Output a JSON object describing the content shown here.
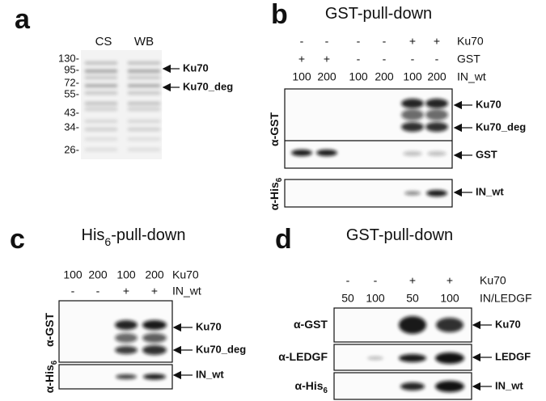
{
  "panels": [
    {
      "letter": "a",
      "lanes": [
        "CS",
        "WB"
      ],
      "markers": [
        "130-",
        "95-",
        "72-",
        "55-",
        "43-",
        "34-",
        "26-"
      ],
      "arrows": [
        "Ku70",
        "Ku70_deg"
      ]
    },
    {
      "letter": "b",
      "title": {
        "text": "GST-pull-down"
      },
      "rows": [
        {
          "label": "Ku70",
          "cells": [
            "-",
            "-",
            "-",
            "-",
            "+",
            "+"
          ]
        },
        {
          "label": "GST",
          "cells": [
            "+",
            "+",
            "-",
            "-",
            "-",
            "-"
          ]
        },
        {
          "label": "IN_wt",
          "cells": [
            "100",
            "200",
            "100",
            "200",
            "100",
            "200"
          ]
        }
      ],
      "blots": [
        {
          "antibody": {
            "text": "α-GST"
          },
          "arrows": [
            "Ku70",
            "Ku70_deg",
            "GST"
          ]
        },
        {
          "antibody": {
            "text": "α-His",
            "sub": "6"
          },
          "arrows": [
            "IN_wt"
          ]
        }
      ]
    },
    {
      "letter": "c",
      "title": {
        "text": "His",
        "sub": "6",
        "post": "-pull-down"
      },
      "rows": [
        {
          "label": "Ku70",
          "cells": [
            "100",
            "200",
            "100",
            "200"
          ]
        },
        {
          "label": "IN_wt",
          "cells": [
            "-",
            "-",
            "+",
            "+"
          ]
        }
      ],
      "blots": [
        {
          "antibody": {
            "text": "α-GST"
          },
          "arrows": [
            "Ku70",
            "Ku70_deg"
          ]
        },
        {
          "antibody": {
            "text": "α-His",
            "sub": "6"
          },
          "arrows": [
            "IN_wt"
          ]
        }
      ]
    },
    {
      "letter": "d",
      "title": {
        "text": "GST-pull-down"
      },
      "rows": [
        {
          "label": "Ku70",
          "cells": [
            "-",
            "-",
            "+",
            "+"
          ]
        },
        {
          "label": "IN/LEDGF",
          "cells": [
            "50",
            "100",
            "50",
            "100"
          ]
        }
      ],
      "blots": [
        {
          "antibody": {
            "text": "α-GST"
          },
          "arrows": [
            "Ku70"
          ]
        },
        {
          "antibody": {
            "text": "α-LEDGF"
          },
          "arrows": [
            "LEDGF"
          ]
        },
        {
          "antibody": {
            "text": "α-His",
            "sub": "6"
          },
          "arrows": [
            "IN_wt"
          ]
        }
      ]
    }
  ]
}
